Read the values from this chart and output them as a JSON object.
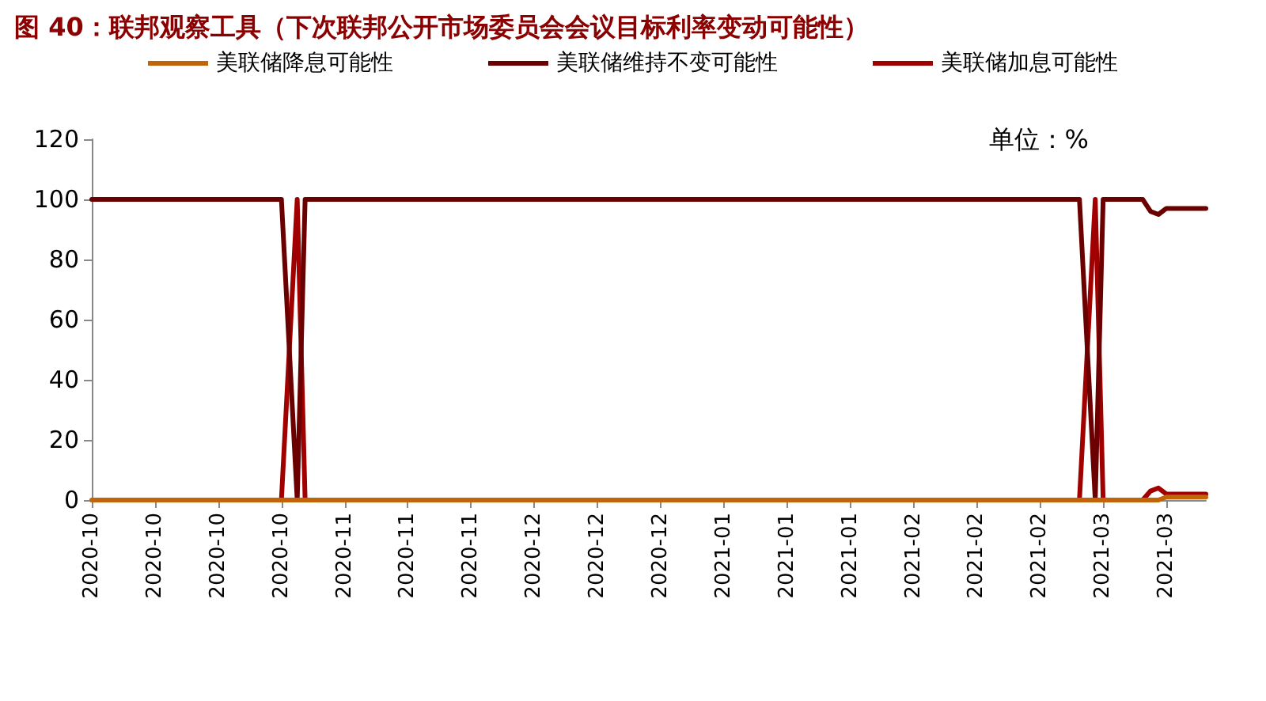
{
  "chart_data": {
    "type": "line",
    "title": "图 40：联邦观察工具（下次联邦公开市场委员会会议目标利率变动可能性）",
    "annotations": [
      "单位：%"
    ],
    "categories": [
      "2020-10",
      null,
      null,
      null,
      null,
      null,
      null,
      null,
      "2020-10",
      null,
      null,
      null,
      null,
      null,
      null,
      null,
      "2020-10",
      null,
      null,
      null,
      null,
      null,
      null,
      null,
      "2020-10",
      null,
      null,
      null,
      null,
      null,
      null,
      null,
      "2020-11",
      null,
      null,
      null,
      null,
      null,
      null,
      null,
      "2020-11",
      null,
      null,
      null,
      null,
      null,
      null,
      null,
      "2020-11",
      null,
      null,
      null,
      null,
      null,
      null,
      null,
      "2020-12",
      null,
      null,
      null,
      null,
      null,
      null,
      null,
      "2020-12",
      null,
      null,
      null,
      null,
      null,
      null,
      null,
      "2020-12",
      null,
      null,
      null,
      null,
      null,
      null,
      null,
      "2021-01",
      null,
      null,
      null,
      null,
      null,
      null,
      null,
      "2021-01",
      null,
      null,
      null,
      null,
      null,
      null,
      null,
      "2021-01",
      null,
      null,
      null,
      null,
      null,
      null,
      null,
      "2021-02",
      null,
      null,
      null,
      null,
      null,
      null,
      null,
      "2021-02",
      null,
      null,
      null,
      null,
      null,
      null,
      null,
      "2021-02",
      null,
      null,
      null,
      null,
      null,
      null,
      null,
      "2021-03",
      null,
      null,
      null,
      null,
      null,
      null,
      null,
      "2021-03",
      null,
      null,
      null,
      null,
      null
    ],
    "series": [
      {
        "name": "美联储降息可能性",
        "color": "#c0650a",
        "values": [
          0,
          0,
          0,
          0,
          0,
          0,
          0,
          0,
          0,
          0,
          0,
          0,
          0,
          0,
          0,
          0,
          0,
          0,
          0,
          0,
          0,
          0,
          0,
          0,
          0,
          0,
          0,
          0,
          0,
          0,
          0,
          0,
          0,
          0,
          0,
          0,
          0,
          0,
          0,
          0,
          0,
          0,
          0,
          0,
          0,
          0,
          0,
          0,
          0,
          0,
          0,
          0,
          0,
          0,
          0,
          0,
          0,
          0,
          0,
          0,
          0,
          0,
          0,
          0,
          0,
          0,
          0,
          0,
          0,
          0,
          0,
          0,
          0,
          0,
          0,
          0,
          0,
          0,
          0,
          0,
          0,
          0,
          0,
          0,
          0,
          0,
          0,
          0,
          0,
          0,
          0,
          0,
          0,
          0,
          0,
          0,
          0,
          0,
          0,
          0,
          0,
          0,
          0,
          0,
          0,
          0,
          0,
          0,
          0,
          0,
          0,
          0,
          0,
          0,
          0,
          0,
          0,
          0,
          0,
          0,
          0,
          0,
          0,
          0,
          0,
          0,
          0,
          0,
          0,
          0,
          0,
          0,
          0,
          0,
          0,
          0,
          1,
          1,
          1,
          1,
          1,
          1
        ]
      },
      {
        "name": "美联储维持不变可能性",
        "color": "#6b0000",
        "values": [
          100,
          100,
          100,
          100,
          100,
          100,
          100,
          100,
          100,
          100,
          100,
          100,
          100,
          100,
          100,
          100,
          100,
          100,
          100,
          100,
          100,
          100,
          100,
          100,
          100,
          50,
          0,
          100,
          100,
          100,
          100,
          100,
          100,
          100,
          100,
          100,
          100,
          100,
          100,
          100,
          100,
          100,
          100,
          100,
          100,
          100,
          100,
          100,
          100,
          100,
          100,
          100,
          100,
          100,
          100,
          100,
          100,
          100,
          100,
          100,
          100,
          100,
          100,
          100,
          100,
          100,
          100,
          100,
          100,
          100,
          100,
          100,
          100,
          100,
          100,
          100,
          100,
          100,
          100,
          100,
          100,
          100,
          100,
          100,
          100,
          100,
          100,
          100,
          100,
          100,
          100,
          100,
          100,
          100,
          100,
          100,
          100,
          100,
          100,
          100,
          100,
          100,
          100,
          100,
          100,
          100,
          100,
          100,
          100,
          100,
          100,
          100,
          100,
          100,
          100,
          100,
          100,
          100,
          100,
          100,
          100,
          100,
          100,
          100,
          100,
          100,
          50,
          0,
          100,
          100,
          100,
          100,
          100,
          100,
          96,
          95,
          97,
          97,
          97,
          97,
          97,
          97
        ]
      },
      {
        "name": "美联储加息可能性",
        "color": "#a00000",
        "values": [
          null,
          null,
          null,
          null,
          null,
          null,
          null,
          null,
          null,
          null,
          null,
          null,
          null,
          null,
          null,
          null,
          null,
          null,
          null,
          null,
          null,
          null,
          null,
          null,
          0,
          50,
          100,
          0,
          null,
          null,
          null,
          null,
          null,
          null,
          null,
          null,
          null,
          null,
          null,
          null,
          null,
          null,
          null,
          null,
          null,
          null,
          null,
          null,
          null,
          null,
          null,
          null,
          null,
          null,
          null,
          null,
          null,
          null,
          null,
          null,
          null,
          null,
          null,
          null,
          null,
          null,
          null,
          null,
          null,
          null,
          null,
          null,
          null,
          null,
          null,
          null,
          null,
          null,
          null,
          null,
          null,
          null,
          null,
          null,
          null,
          null,
          null,
          null,
          null,
          null,
          null,
          null,
          null,
          null,
          null,
          null,
          null,
          null,
          null,
          null,
          null,
          null,
          null,
          null,
          null,
          null,
          null,
          null,
          null,
          null,
          null,
          null,
          null,
          null,
          null,
          null,
          null,
          null,
          null,
          null,
          null,
          null,
          null,
          null,
          null,
          0,
          50,
          100,
          0,
          null,
          null,
          null,
          null,
          0,
          3,
          4,
          2,
          2,
          2,
          2,
          2,
          2
        ]
      }
    ],
    "ylim": [
      0,
      120
    ],
    "yticks": [
      0,
      20,
      40,
      60,
      80,
      100,
      120
    ],
    "grid": false,
    "legend": "top",
    "marker": "none",
    "line_style": "solid"
  }
}
